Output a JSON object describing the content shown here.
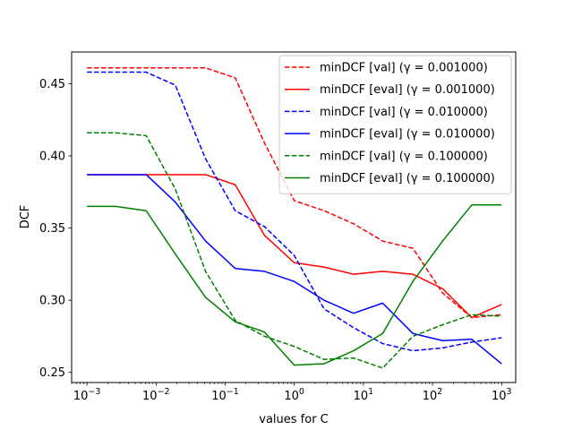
{
  "chart_data": {
    "type": "line",
    "title": "",
    "xlabel": "values for C",
    "ylabel": "DCF",
    "xscale": "log",
    "xlim": [
      0.0006,
      1600
    ],
    "ylim": [
      0.243,
      0.472
    ],
    "x_ticks": [
      {
        "value": 0.001,
        "base": "10",
        "exp": "−3"
      },
      {
        "value": 0.01,
        "base": "10",
        "exp": "−2"
      },
      {
        "value": 0.1,
        "base": "10",
        "exp": "−1"
      },
      {
        "value": 1,
        "base": "10",
        "exp": "0"
      },
      {
        "value": 10,
        "base": "10",
        "exp": "1"
      },
      {
        "value": 100,
        "base": "10",
        "exp": "2"
      },
      {
        "value": 1000,
        "base": "10",
        "exp": "3"
      }
    ],
    "y_ticks": [
      "0.25",
      "0.30",
      "0.35",
      "0.40",
      "0.45"
    ],
    "grid": false,
    "legend_position": "top-right",
    "x": [
      0.001,
      0.0026,
      0.0072,
      0.019,
      0.052,
      0.14,
      0.37,
      1,
      2.7,
      7.2,
      19,
      52,
      140,
      370,
      1000
    ],
    "series": [
      {
        "name": "minDCF [val] (γ = 0.001000)",
        "color": "#ff0000",
        "dash": true,
        "values": [
          0.461,
          0.461,
          0.461,
          0.461,
          0.461,
          0.454,
          0.409,
          0.369,
          0.362,
          0.353,
          0.341,
          0.336,
          0.305,
          0.288,
          0.29
        ]
      },
      {
        "name": "minDCF [eval] (γ = 0.001000)",
        "color": "#ff0000",
        "dash": false,
        "values": [
          0.387,
          0.387,
          0.387,
          0.387,
          0.387,
          0.38,
          0.345,
          0.326,
          0.323,
          0.318,
          0.32,
          0.318,
          0.308,
          0.288,
          0.297
        ]
      },
      {
        "name": "minDCF [val] (γ = 0.010000)",
        "color": "#0000ff",
        "dash": true,
        "values": [
          0.458,
          0.458,
          0.458,
          0.449,
          0.398,
          0.362,
          0.351,
          0.331,
          0.294,
          0.281,
          0.27,
          0.265,
          0.267,
          0.271,
          0.274
        ]
      },
      {
        "name": "minDCF [eval] (γ = 0.010000)",
        "color": "#0000ff",
        "dash": false,
        "values": [
          0.387,
          0.387,
          0.387,
          0.368,
          0.341,
          0.322,
          0.32,
          0.313,
          0.3,
          0.291,
          0.298,
          0.277,
          0.272,
          0.273,
          0.256
        ]
      },
      {
        "name": "minDCF [val] (γ = 0.100000)",
        "color": "#008000",
        "dash": true,
        "values": [
          0.416,
          0.416,
          0.414,
          0.377,
          0.32,
          0.286,
          0.275,
          0.268,
          0.259,
          0.26,
          0.253,
          0.275,
          0.283,
          0.29,
          0.289
        ]
      },
      {
        "name": "minDCF [eval] (γ = 0.100000)",
        "color": "#008000",
        "dash": false,
        "values": [
          0.365,
          0.365,
          0.362,
          0.332,
          0.302,
          0.285,
          0.278,
          0.255,
          0.256,
          0.265,
          0.277,
          0.313,
          0.341,
          0.366,
          0.366
        ]
      }
    ]
  }
}
